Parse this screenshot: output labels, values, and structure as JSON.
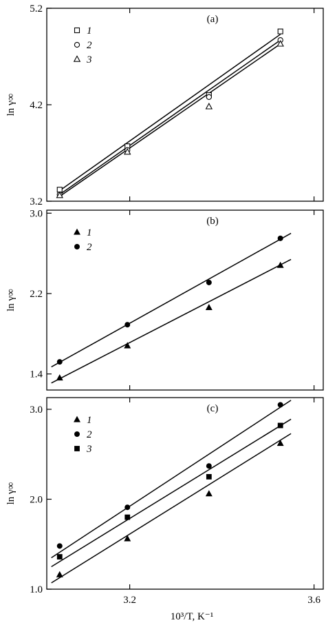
{
  "chart_data": [
    {
      "type": "scatter",
      "panel_label": "(a)",
      "ylabel": "ln γ∞",
      "xlabel": "",
      "xlim": [
        3.02,
        3.62
      ],
      "ylim": [
        3.2,
        5.2
      ],
      "yticks": [
        3.2,
        4.2,
        5.2
      ],
      "ytick_labels": [
        "3.2",
        "4.2",
        "5.2"
      ],
      "xticks": [
        3.2,
        3.6
      ],
      "xtick_labels": [
        "",
        ""
      ],
      "legend_position": "top-left",
      "series": [
        {
          "name": "1",
          "marker": "square-open",
          "x": [
            3.048,
            3.195,
            3.372,
            3.527
          ],
          "y": [
            3.32,
            3.77,
            4.3,
            4.96
          ],
          "fit": [
            [
              3.048,
              3.31
            ],
            [
              3.527,
              4.93
            ]
          ]
        },
        {
          "name": "2",
          "marker": "circle-open",
          "x": [
            3.048,
            3.195,
            3.372,
            3.527
          ],
          "y": [
            3.27,
            3.73,
            4.28,
            4.87
          ],
          "fit": [
            [
              3.048,
              3.27
            ],
            [
              3.527,
              4.87
            ]
          ]
        },
        {
          "name": "3",
          "marker": "triangle-open",
          "x": [
            3.048,
            3.195,
            3.372,
            3.527
          ],
          "y": [
            3.26,
            3.71,
            4.18,
            4.83
          ],
          "fit": [
            [
              3.048,
              3.25
            ],
            [
              3.527,
              4.83
            ]
          ]
        }
      ]
    },
    {
      "type": "scatter",
      "panel_label": "(b)",
      "ylabel": "ln γ∞",
      "xlabel": "",
      "xlim": [
        3.02,
        3.62
      ],
      "ylim": [
        1.24,
        3.03
      ],
      "yticks": [
        1.4,
        2.2,
        3.0
      ],
      "ytick_labels": [
        "1.4",
        "2.2",
        "3.0"
      ],
      "xticks": [
        3.2,
        3.6
      ],
      "xtick_labels": [
        "",
        ""
      ],
      "legend_position": "top-left",
      "series": [
        {
          "name": "1",
          "marker": "triangle-filled",
          "x": [
            3.048,
            3.195,
            3.372,
            3.527
          ],
          "y": [
            1.36,
            1.68,
            2.06,
            2.48
          ],
          "fit": [
            [
              3.03,
              1.31
            ],
            [
              3.55,
              2.54
            ]
          ]
        },
        {
          "name": "2",
          "marker": "circle-filled",
          "x": [
            3.048,
            3.195,
            3.372,
            3.527
          ],
          "y": [
            1.52,
            1.89,
            2.31,
            2.75
          ],
          "fit": [
            [
              3.03,
              1.47
            ],
            [
              3.55,
              2.8
            ]
          ]
        }
      ]
    },
    {
      "type": "scatter",
      "panel_label": "(c)",
      "ylabel": "ln γ∞",
      "xlabel": "10³/T, K⁻¹",
      "xlim": [
        3.02,
        3.62
      ],
      "ylim": [
        1.0,
        3.13
      ],
      "yticks": [
        1.0,
        2.0,
        3.0
      ],
      "ytick_labels": [
        "1.0",
        "2.0",
        "3.0"
      ],
      "xticks": [
        3.2,
        3.6
      ],
      "xtick_labels": [
        "3.2",
        "3.6"
      ],
      "legend_position": "top-left",
      "series": [
        {
          "name": "1",
          "marker": "triangle-filled",
          "x": [
            3.048,
            3.195,
            3.372,
            3.527
          ],
          "y": [
            1.16,
            1.56,
            2.06,
            2.62
          ],
          "fit": [
            [
              3.03,
              1.07
            ],
            [
              3.55,
              2.73
            ]
          ]
        },
        {
          "name": "2",
          "marker": "circle-filled",
          "x": [
            3.048,
            3.195,
            3.372,
            3.527
          ],
          "y": [
            1.48,
            1.91,
            2.37,
            3.05
          ],
          "fit": [
            [
              3.03,
              1.35
            ],
            [
              3.55,
              3.1
            ]
          ]
        },
        {
          "name": "3",
          "marker": "square-filled",
          "x": [
            3.048,
            3.195,
            3.372,
            3.527
          ],
          "y": [
            1.36,
            1.8,
            2.25,
            2.82
          ],
          "fit": [
            [
              3.03,
              1.25
            ],
            [
              3.55,
              2.89
            ]
          ]
        }
      ]
    }
  ]
}
